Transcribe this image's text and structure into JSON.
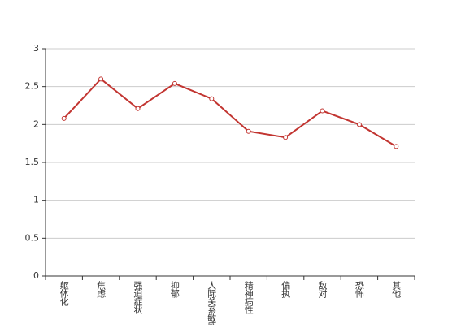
{
  "chart_data": {
    "type": "line",
    "categories": [
      "躯体化",
      "焦虑",
      "强迫症状",
      "抑郁",
      "人际关系敏感",
      "精神病性",
      "偏执",
      "敌对",
      "恐怖",
      "其他"
    ],
    "series": [
      {
        "name": null,
        "color": "#c23531",
        "values": [
          2.08,
          2.6,
          2.21,
          2.54,
          2.34,
          1.91,
          1.83,
          2.18,
          2.0,
          1.71
        ]
      }
    ],
    "ylim": [
      0,
      3
    ],
    "yticks": [
      0,
      0.5,
      1,
      1.5,
      2,
      2.5,
      3
    ],
    "grid": true
  }
}
